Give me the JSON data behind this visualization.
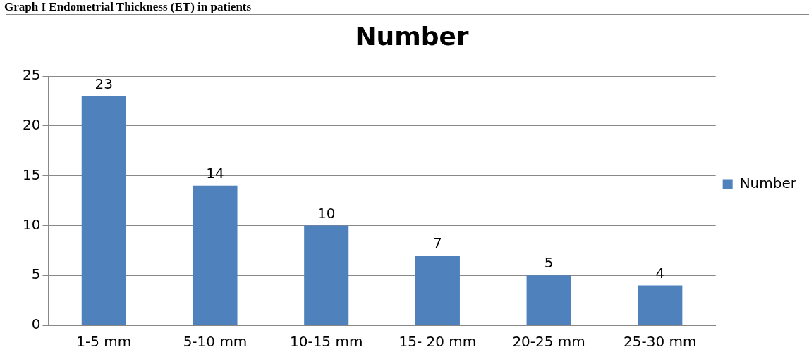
{
  "chart_data": {
    "type": "bar",
    "title": "Number",
    "annotations": [
      "Graph I Endometrial Thickness (ET) in patients"
    ],
    "categories": [
      "1-5 mm",
      "5-10 mm",
      "10-15 mm",
      "15- 20 mm",
      "20-25 mm",
      "25-30 mm"
    ],
    "series": [
      {
        "name": "Number",
        "color": "#4f81bd",
        "values": [
          23,
          14,
          10,
          7,
          5,
          4
        ]
      }
    ],
    "ylim": [
      0,
      25
    ],
    "yticks": [
      0,
      5,
      10,
      15,
      20,
      25
    ],
    "grid": "y",
    "legend": "right",
    "data_labels": true
  }
}
